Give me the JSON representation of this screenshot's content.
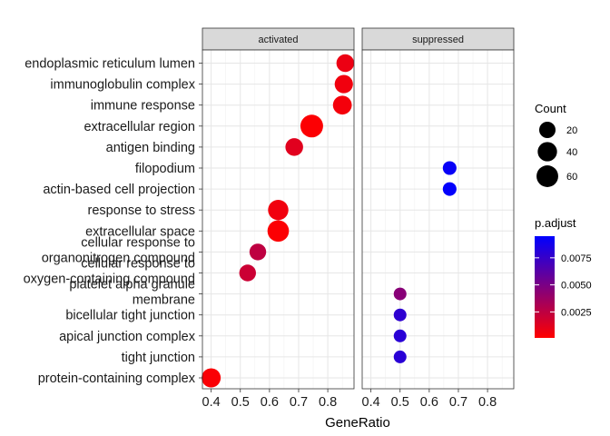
{
  "chart_data": {
    "type": "scatter",
    "xlabel": "GeneRatio",
    "xlim": [
      0.37,
      0.89
    ],
    "xticks": [
      "0.4",
      "0.5",
      "0.6",
      "0.7",
      "0.8"
    ],
    "xtick_values": [
      0.4,
      0.5,
      0.6,
      0.7,
      0.8
    ],
    "categories": [
      "endoplasmic reticulum lumen",
      "immunoglobulin complex",
      "immune response",
      "extracellular region",
      "antigen binding",
      "filopodium",
      "actin-based cell projection",
      "response to stress",
      "extracellular space",
      "cellular response to organonitrogen compound",
      "cellular response to oxygen-containing compound",
      "platelet alpha granule membrane",
      "bicellular tight junction",
      "apical junction complex",
      "tight junction",
      "protein-containing complex"
    ],
    "category_lines": [
      [
        "endoplasmic reticulum lumen"
      ],
      [
        "immunoglobulin complex"
      ],
      [
        "immune response"
      ],
      [
        "extracellular region"
      ],
      [
        "antigen binding"
      ],
      [
        "filopodium"
      ],
      [
        "actin-based cell projection"
      ],
      [
        "response to stress"
      ],
      [
        "extracellular space"
      ],
      [
        "cellular response to",
        "organonitrogen compound"
      ],
      [
        "cellular response to",
        "oxygen-containing compound"
      ],
      [
        "platelet alpha granule",
        "membrane"
      ],
      [
        "bicellular tight junction"
      ],
      [
        "apical junction complex"
      ],
      [
        "tight junction"
      ],
      [
        "protein-containing complex"
      ]
    ],
    "panels": [
      {
        "label": "activated",
        "points": [
          {
            "term": "endoplasmic reticulum lumen",
            "x": 0.86,
            "count": 28,
            "p_adjust": 0.0008
          },
          {
            "term": "immunoglobulin complex",
            "x": 0.855,
            "count": 32,
            "p_adjust": 0.0006
          },
          {
            "term": "immune response",
            "x": 0.85,
            "count": 36,
            "p_adjust": 0.0005
          },
          {
            "term": "extracellular region",
            "x": 0.745,
            "count": 70,
            "p_adjust": 0.0002
          },
          {
            "term": "antigen binding",
            "x": 0.685,
            "count": 28,
            "p_adjust": 0.0012
          },
          {
            "term": "response to stress",
            "x": 0.63,
            "count": 48,
            "p_adjust": 0.0006
          },
          {
            "term": "extracellular space",
            "x": 0.63,
            "count": 58,
            "p_adjust": 0.0002
          },
          {
            "term": "cellular response to organonitrogen compound",
            "x": 0.56,
            "count": 22,
            "p_adjust": 0.0025
          },
          {
            "term": "cellular response to oxygen-containing compound",
            "x": 0.525,
            "count": 22,
            "p_adjust": 0.002
          },
          {
            "term": "protein-containing complex",
            "x": 0.4,
            "count": 38,
            "p_adjust": 0.0003
          }
        ]
      },
      {
        "label": "suppressed",
        "points": [
          {
            "term": "filopodium",
            "x": 0.67,
            "count": 8,
            "p_adjust": 0.0092
          },
          {
            "term": "actin-based cell projection",
            "x": 0.67,
            "count": 8,
            "p_adjust": 0.0094
          },
          {
            "term": "platelet alpha granule membrane",
            "x": 0.5,
            "count": 5,
            "p_adjust": 0.0045
          },
          {
            "term": "bicellular tight junction",
            "x": 0.5,
            "count": 5,
            "p_adjust": 0.0078
          },
          {
            "term": "apical junction complex",
            "x": 0.5,
            "count": 5,
            "p_adjust": 0.008
          },
          {
            "term": "tight junction",
            "x": 0.5,
            "count": 5,
            "p_adjust": 0.008
          }
        ]
      }
    ],
    "size_legend": {
      "title": "Count",
      "breaks": [
        20,
        40,
        60
      ],
      "labels": [
        "20",
        "40",
        "60"
      ]
    },
    "color_legend": {
      "title": "p.adjust",
      "range": [
        0.0001,
        0.0095
      ],
      "breaks": [
        0.0025,
        0.005,
        0.0075
      ],
      "labels": [
        "0.0025",
        "0.0050",
        "0.0075"
      ],
      "low_color": "#ff0000",
      "high_color": "#0000ff"
    },
    "grid": true,
    "legend_position": "right"
  }
}
